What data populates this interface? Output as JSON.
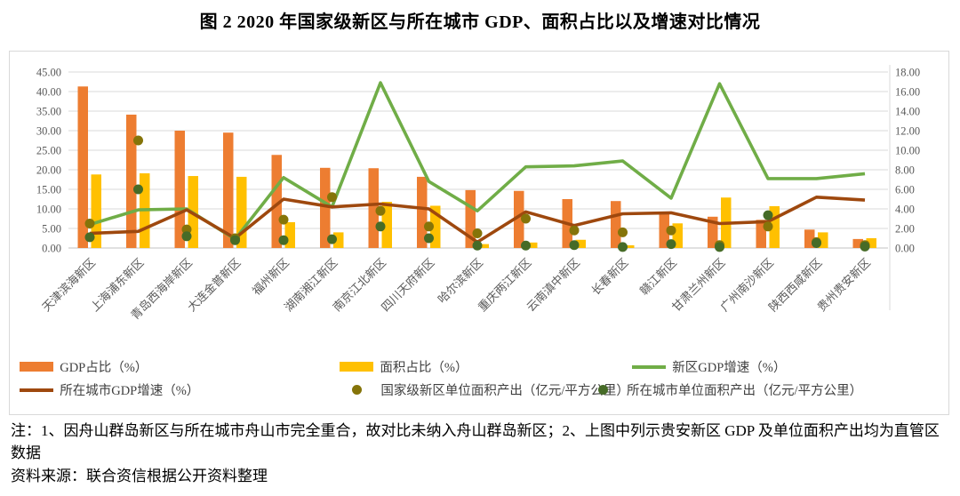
{
  "title": "图 2  2020 年国家级新区与所在城市 GDP、面积占比以及增速对比情况",
  "notes": {
    "note": "注：1、因舟山群岛新区与所在城市舟山市完全重合，故对比未纳入舟山群岛新区；2、上图中列示贵安新区 GDP 及单位面积产出均为直管区数据",
    "source": "资料来源：联合资信根据公开资料整理"
  },
  "style": {
    "grid": "#d9d9d9",
    "axis_line": "#c0c0c0",
    "axis_text": "#595959",
    "x_label_text": "#595959"
  },
  "chart_data": {
    "type": "combo (bar + line + scatter), dual y-axis",
    "grid": true,
    "legend_position": "bottom",
    "categories": [
      "天津滨海新区",
      "上海浦东新区",
      "青岛西海岸新区",
      "大连金普新区",
      "福州新区",
      "湖南湘江新区",
      "南京江北新区",
      "四川天府新区",
      "哈尔滨新区",
      "重庆两江新区",
      "云南滇中新区",
      "长春新区",
      "赣江新区",
      "甘肃兰州新区",
      "广州南沙新区",
      "陕西西咸新区",
      "贵州贵安新区"
    ],
    "left_axis": {
      "min": 0,
      "max": 45,
      "step": 5,
      "tick_labels": [
        "0.00",
        "5.00",
        "10.00",
        "15.00",
        "20.00",
        "25.00",
        "30.00",
        "35.00",
        "40.00",
        "45.00"
      ]
    },
    "right_axis": {
      "min": 0,
      "max": 18,
      "step": 2,
      "tick_labels": [
        "0.00",
        "2.00",
        "4.00",
        "6.00",
        "8.00",
        "10.00",
        "12.00",
        "14.00",
        "16.00",
        "18.00"
      ]
    },
    "series": [
      {
        "name": "GDP占比（%）",
        "type": "bar",
        "axis": "left",
        "color": "#ED7D31",
        "values": [
          41.3,
          34.1,
          30.0,
          29.5,
          23.8,
          20.5,
          20.4,
          18.2,
          14.8,
          14.6,
          12.5,
          12.0,
          9.2,
          8.0,
          7.2,
          4.7,
          2.3
        ]
      },
      {
        "name": "面积占比（%）",
        "type": "bar",
        "axis": "left",
        "color": "#FFC000",
        "values": [
          18.8,
          19.1,
          18.4,
          18.2,
          6.6,
          4.0,
          11.8,
          10.8,
          1.0,
          1.4,
          2.1,
          0.7,
          6.3,
          12.9,
          10.7,
          4.0,
          2.5
        ]
      },
      {
        "name": "新区GDP增速（%）",
        "type": "line",
        "axis": "right",
        "color": "#70AD47",
        "values": [
          2.4,
          3.9,
          4.0,
          0.9,
          7.2,
          4.2,
          16.9,
          6.8,
          3.8,
          8.3,
          8.4,
          8.9,
          5.1,
          16.8,
          7.1,
          7.1,
          7.6
        ]
      },
      {
        "name": "所在城市GDP增速（%）",
        "type": "line",
        "axis": "right",
        "color": "#9E480E",
        "values": [
          1.5,
          1.7,
          3.9,
          1.0,
          5.0,
          4.2,
          4.5,
          4.0,
          0.6,
          3.7,
          2.3,
          3.5,
          3.6,
          2.5,
          2.7,
          5.2,
          4.9
        ]
      },
      {
        "name": "国家级新区单位面积产出（亿元/平方公里）",
        "type": "scatter",
        "axis": "right",
        "color": "#857409",
        "values": [
          2.5,
          11.0,
          1.9,
          1.0,
          2.9,
          5.2,
          3.8,
          2.2,
          1.5,
          3.0,
          1.8,
          1.6,
          1.8,
          0.3,
          2.2,
          0.6,
          0.3
        ]
      },
      {
        "name": "所在城市单位面积产出（亿元/平方公里）",
        "type": "scatter",
        "axis": "right",
        "color": "#466B27",
        "values": [
          1.1,
          6.0,
          1.2,
          0.8,
          0.8,
          0.9,
          2.2,
          1.0,
          0.25,
          0.25,
          0.3,
          0.1,
          0.4,
          0.1,
          3.35,
          0.5,
          0.15
        ]
      }
    ]
  }
}
